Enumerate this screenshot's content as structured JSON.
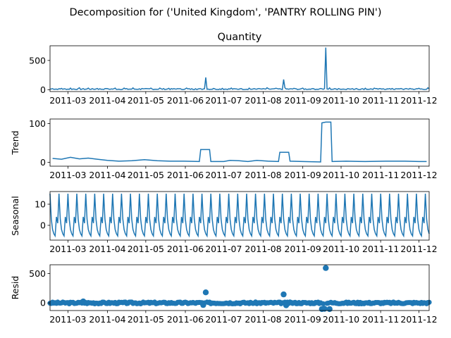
{
  "title": "Decomposition for ('United Kingdom', 'PANTRY ROLLING PIN')",
  "chart_data": [
    {
      "type": "line",
      "title": "Quantity",
      "ylabel": "",
      "ylim": [
        -30,
        750
      ],
      "yticks": [
        0,
        500
      ],
      "xlim": [
        "2011-02-15",
        "2011-12-09"
      ],
      "xticks": [
        "2011-03",
        "2011-04",
        "2011-05",
        "2011-06",
        "2011-07",
        "2011-08",
        "2011-09",
        "2011-10",
        "2011-11",
        "2011-12"
      ],
      "color": "#1f77b4",
      "baseline": 12,
      "spikes": [
        {
          "x": "2011-06-17",
          "y": 210
        },
        {
          "x": "2011-08-17",
          "y": 175
        },
        {
          "x": "2011-09-19",
          "y": 720
        }
      ]
    },
    {
      "type": "line",
      "title": "",
      "ylabel": "Trend",
      "ylim": [
        -10,
        112
      ],
      "yticks": [
        0,
        100
      ],
      "xlim": [
        "2011-02-15",
        "2011-12-09"
      ],
      "xticks": [
        "2011-03",
        "2011-04",
        "2011-05",
        "2011-06",
        "2011-07",
        "2011-08",
        "2011-09",
        "2011-10",
        "2011-11",
        "2011-12"
      ],
      "color": "#1f77b4",
      "points": [
        [
          "2011-02-17",
          10
        ],
        [
          "2011-02-24",
          8
        ],
        [
          "2011-03-03",
          13
        ],
        [
          "2011-03-10",
          9
        ],
        [
          "2011-03-17",
          11
        ],
        [
          "2011-03-24",
          8
        ],
        [
          "2011-04-01",
          5
        ],
        [
          "2011-04-10",
          3
        ],
        [
          "2011-04-20",
          4
        ],
        [
          "2011-04-30",
          7
        ],
        [
          "2011-05-10",
          4
        ],
        [
          "2011-05-20",
          3
        ],
        [
          "2011-05-31",
          3
        ],
        [
          "2011-06-12",
          2
        ],
        [
          "2011-06-13",
          33
        ],
        [
          "2011-06-20",
          33
        ],
        [
          "2011-06-21",
          2
        ],
        [
          "2011-07-01",
          2
        ],
        [
          "2011-07-06",
          5
        ],
        [
          "2011-07-13",
          4
        ],
        [
          "2011-07-20",
          2
        ],
        [
          "2011-07-27",
          5
        ],
        [
          "2011-08-05",
          3
        ],
        [
          "2011-08-13",
          2
        ],
        [
          "2011-08-14",
          26
        ],
        [
          "2011-08-21",
          26
        ],
        [
          "2011-08-22",
          3
        ],
        [
          "2011-09-01",
          2
        ],
        [
          "2011-09-15",
          1
        ],
        [
          "2011-09-16",
          102
        ],
        [
          "2011-09-19",
          104
        ],
        [
          "2011-09-23",
          104
        ],
        [
          "2011-09-24",
          2
        ],
        [
          "2011-10-05",
          3
        ],
        [
          "2011-10-20",
          2
        ],
        [
          "2011-11-05",
          3
        ],
        [
          "2011-11-20",
          3
        ],
        [
          "2011-12-01",
          2
        ],
        [
          "2011-12-07",
          2
        ]
      ]
    },
    {
      "type": "line",
      "title": "",
      "ylabel": "Seasonal",
      "ylim": [
        -7,
        16
      ],
      "yticks": [
        0,
        10
      ],
      "xlim": [
        "2011-02-15",
        "2011-12-09"
      ],
      "xticks": [
        "2011-03",
        "2011-04",
        "2011-05",
        "2011-06",
        "2011-07",
        "2011-08",
        "2011-09",
        "2011-10",
        "2011-11",
        "2011-12"
      ],
      "color": "#1f77b4",
      "period_days": 7,
      "cycle": [
        15,
        3,
        -2,
        -4,
        -5,
        4,
        1
      ]
    },
    {
      "type": "scatter",
      "title": "",
      "ylabel": "Resid",
      "ylim": [
        -130,
        650
      ],
      "yticks": [
        0,
        500
      ],
      "xlim": [
        "2011-02-15",
        "2011-12-09"
      ],
      "xticks": [
        "2011-03",
        "2011-04",
        "2011-05",
        "2011-06",
        "2011-07",
        "2011-08",
        "2011-09",
        "2011-10",
        "2011-11",
        "2011-12"
      ],
      "color": "#1f77b4",
      "baseline": 0,
      "hline": 0,
      "outliers": [
        {
          "x": "2011-03-13",
          "y": 25
        },
        {
          "x": "2011-06-17",
          "y": 180
        },
        {
          "x": "2011-06-15",
          "y": -35
        },
        {
          "x": "2011-08-17",
          "y": 145
        },
        {
          "x": "2011-08-19",
          "y": -40
        },
        {
          "x": "2011-09-19",
          "y": 595
        },
        {
          "x": "2011-09-16",
          "y": -105
        },
        {
          "x": "2011-09-22",
          "y": -105
        },
        {
          "x": "2011-09-18",
          "y": -100
        }
      ]
    }
  ]
}
